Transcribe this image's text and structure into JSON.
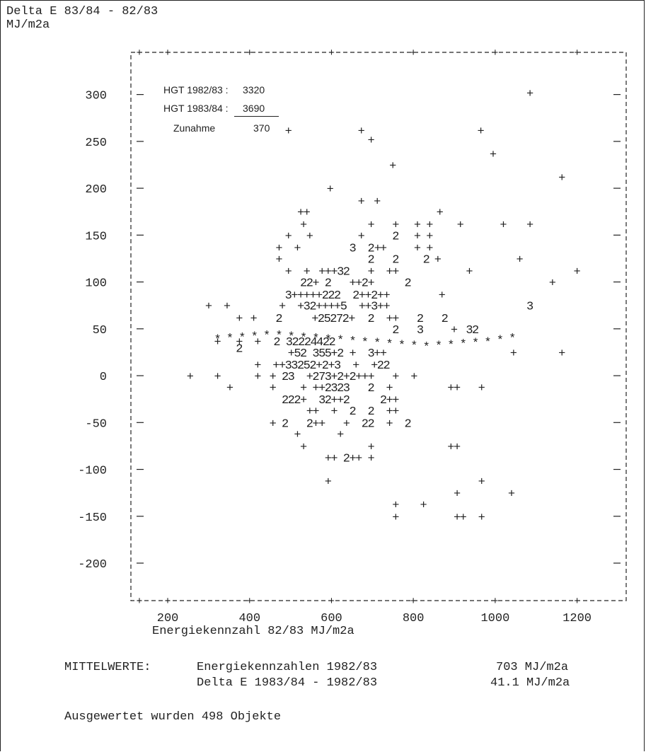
{
  "header": {
    "title": "Delta E 83/84 - 82/83",
    "unit": "MJ/m2a"
  },
  "chart_data": {
    "type": "scatter",
    "title": "Delta E 83/84 - 82/83",
    "ylabel": "MJ/m2a",
    "xlabel": "Energiekennzahl 82/83  MJ/m2a",
    "xlim": [
      110,
      1320
    ],
    "ylim": [
      -240,
      345
    ],
    "x_ticks": [
      200,
      400,
      600,
      800,
      1000,
      1200
    ],
    "y_ticks": [
      300,
      250,
      200,
      150,
      100,
      50,
      0,
      -50,
      -100,
      -150,
      -200
    ],
    "x_tick_labels": [
      "200",
      "400",
      "600",
      "800",
      "1000",
      "1200"
    ],
    "y_tick_labels": [
      "300",
      "250",
      "200",
      "150",
      "100",
      "50",
      "0",
      "-50",
      "-100",
      "-150",
      "-200"
    ],
    "grid": false,
    "markers": "count glyphs: '+' = 1 object, digits = number of objects at the same point, '*' = regression line",
    "points": [
      {
        "x": 1085,
        "y": 302,
        "m": "+"
      },
      {
        "x": 495,
        "y": 262,
        "m": "+"
      },
      {
        "x": 673,
        "y": 262,
        "m": "+"
      },
      {
        "x": 697,
        "y": 252,
        "m": "+"
      },
      {
        "x": 965,
        "y": 262,
        "m": "+"
      },
      {
        "x": 995,
        "y": 237,
        "m": "+"
      },
      {
        "x": 750,
        "y": 225,
        "m": "+"
      },
      {
        "x": 1163,
        "y": 212,
        "m": "+"
      },
      {
        "x": 597,
        "y": 200,
        "m": "+"
      },
      {
        "x": 673,
        "y": 187,
        "m": "+"
      },
      {
        "x": 712,
        "y": 187,
        "m": "+"
      },
      {
        "x": 525,
        "y": 175,
        "m": "+"
      },
      {
        "x": 540,
        "y": 175,
        "m": "+"
      },
      {
        "x": 865,
        "y": 175,
        "m": "+"
      },
      {
        "x": 532,
        "y": 162,
        "m": "+"
      },
      {
        "x": 697,
        "y": 162,
        "m": "+"
      },
      {
        "x": 757,
        "y": 162,
        "m": "+"
      },
      {
        "x": 810,
        "y": 162,
        "m": "+"
      },
      {
        "x": 840,
        "y": 162,
        "m": "+"
      },
      {
        "x": 915,
        "y": 162,
        "m": "+"
      },
      {
        "x": 1020,
        "y": 162,
        "m": "+"
      },
      {
        "x": 1085,
        "y": 162,
        "m": "+"
      },
      {
        "x": 495,
        "y": 150,
        "m": "+"
      },
      {
        "x": 547,
        "y": 150,
        "m": "+"
      },
      {
        "x": 673,
        "y": 150,
        "m": "+"
      },
      {
        "x": 757,
        "y": 150,
        "m": "2"
      },
      {
        "x": 810,
        "y": 150,
        "m": "+"
      },
      {
        "x": 840,
        "y": 150,
        "m": "+"
      },
      {
        "x": 472,
        "y": 137,
        "m": "+"
      },
      {
        "x": 517,
        "y": 137,
        "m": "+"
      },
      {
        "x": 652,
        "y": 137,
        "m": "3"
      },
      {
        "x": 697,
        "y": 137,
        "m": "2"
      },
      {
        "x": 713,
        "y": 137,
        "m": "+"
      },
      {
        "x": 727,
        "y": 137,
        "m": "+"
      },
      {
        "x": 810,
        "y": 137,
        "m": "+"
      },
      {
        "x": 840,
        "y": 137,
        "m": "+"
      },
      {
        "x": 472,
        "y": 125,
        "m": "+"
      },
      {
        "x": 697,
        "y": 125,
        "m": "2"
      },
      {
        "x": 757,
        "y": 125,
        "m": "2"
      },
      {
        "x": 832,
        "y": 125,
        "m": "2"
      },
      {
        "x": 860,
        "y": 125,
        "m": "+"
      },
      {
        "x": 1060,
        "y": 125,
        "m": "+"
      },
      {
        "x": 495,
        "y": 112,
        "m": "+"
      },
      {
        "x": 540,
        "y": 112,
        "m": "+"
      },
      {
        "x": 577,
        "y": 112,
        "m": "+"
      },
      {
        "x": 592,
        "y": 112,
        "m": "+"
      },
      {
        "x": 607,
        "y": 112,
        "m": "+"
      },
      {
        "x": 622,
        "y": 112,
        "m": "3"
      },
      {
        "x": 637,
        "y": 112,
        "m": "2"
      },
      {
        "x": 697,
        "y": 112,
        "m": "+"
      },
      {
        "x": 742,
        "y": 112,
        "m": "+"
      },
      {
        "x": 757,
        "y": 112,
        "m": "+"
      },
      {
        "x": 937,
        "y": 112,
        "m": "+"
      },
      {
        "x": 1200,
        "y": 112,
        "m": "+"
      },
      {
        "x": 532,
        "y": 100,
        "m": "2"
      },
      {
        "x": 547,
        "y": 100,
        "m": "2"
      },
      {
        "x": 562,
        "y": 100,
        "m": "+"
      },
      {
        "x": 592,
        "y": 100,
        "m": "2"
      },
      {
        "x": 652,
        "y": 100,
        "m": "+"
      },
      {
        "x": 667,
        "y": 100,
        "m": "+"
      },
      {
        "x": 682,
        "y": 100,
        "m": "2"
      },
      {
        "x": 697,
        "y": 100,
        "m": "+"
      },
      {
        "x": 787,
        "y": 100,
        "m": "2"
      },
      {
        "x": 1140,
        "y": 100,
        "m": "+"
      },
      {
        "x": 495,
        "y": 87,
        "m": "3"
      },
      {
        "x": 510,
        "y": 87,
        "m": "+"
      },
      {
        "x": 525,
        "y": 87,
        "m": "+"
      },
      {
        "x": 540,
        "y": 87,
        "m": "+"
      },
      {
        "x": 555,
        "y": 87,
        "m": "+"
      },
      {
        "x": 570,
        "y": 87,
        "m": "+"
      },
      {
        "x": 585,
        "y": 87,
        "m": "2"
      },
      {
        "x": 600,
        "y": 87,
        "m": "2"
      },
      {
        "x": 615,
        "y": 87,
        "m": "2"
      },
      {
        "x": 660,
        "y": 87,
        "m": "2"
      },
      {
        "x": 675,
        "y": 87,
        "m": "+"
      },
      {
        "x": 690,
        "y": 87,
        "m": "+"
      },
      {
        "x": 705,
        "y": 87,
        "m": "2"
      },
      {
        "x": 720,
        "y": 87,
        "m": "+"
      },
      {
        "x": 735,
        "y": 87,
        "m": "+"
      },
      {
        "x": 870,
        "y": 87,
        "m": "+"
      },
      {
        "x": 300,
        "y": 75,
        "m": "+"
      },
      {
        "x": 345,
        "y": 75,
        "m": "+"
      },
      {
        "x": 480,
        "y": 75,
        "m": "+"
      },
      {
        "x": 525,
        "y": 75,
        "m": "+"
      },
      {
        "x": 540,
        "y": 75,
        "m": "3"
      },
      {
        "x": 555,
        "y": 75,
        "m": "2"
      },
      {
        "x": 570,
        "y": 75,
        "m": "+"
      },
      {
        "x": 585,
        "y": 75,
        "m": "+"
      },
      {
        "x": 600,
        "y": 75,
        "m": "+"
      },
      {
        "x": 615,
        "y": 75,
        "m": "+"
      },
      {
        "x": 630,
        "y": 75,
        "m": "5"
      },
      {
        "x": 675,
        "y": 75,
        "m": "+"
      },
      {
        "x": 690,
        "y": 75,
        "m": "+"
      },
      {
        "x": 705,
        "y": 75,
        "m": "3"
      },
      {
        "x": 720,
        "y": 75,
        "m": "+"
      },
      {
        "x": 735,
        "y": 75,
        "m": "+"
      },
      {
        "x": 1085,
        "y": 75,
        "m": "3"
      },
      {
        "x": 375,
        "y": 62,
        "m": "+"
      },
      {
        "x": 410,
        "y": 62,
        "m": "+"
      },
      {
        "x": 472,
        "y": 62,
        "m": "2"
      },
      {
        "x": 560,
        "y": 62,
        "m": "+"
      },
      {
        "x": 575,
        "y": 62,
        "m": "2"
      },
      {
        "x": 590,
        "y": 62,
        "m": "5"
      },
      {
        "x": 605,
        "y": 62,
        "m": "2"
      },
      {
        "x": 620,
        "y": 62,
        "m": "7"
      },
      {
        "x": 635,
        "y": 62,
        "m": "2"
      },
      {
        "x": 650,
        "y": 62,
        "m": "+"
      },
      {
        "x": 697,
        "y": 62,
        "m": "2"
      },
      {
        "x": 742,
        "y": 62,
        "m": "+"
      },
      {
        "x": 757,
        "y": 62,
        "m": "+"
      },
      {
        "x": 817,
        "y": 62,
        "m": "2"
      },
      {
        "x": 877,
        "y": 62,
        "m": "2"
      },
      {
        "x": 757,
        "y": 50,
        "m": "2"
      },
      {
        "x": 817,
        "y": 50,
        "m": "3"
      },
      {
        "x": 900,
        "y": 50,
        "m": "+"
      },
      {
        "x": 937,
        "y": 50,
        "m": "3"
      },
      {
        "x": 952,
        "y": 50,
        "m": "2"
      },
      {
        "x": 322,
        "y": 37,
        "m": "+"
      },
      {
        "x": 375,
        "y": 37,
        "m": "+"
      },
      {
        "x": 420,
        "y": 37,
        "m": "+"
      },
      {
        "x": 467,
        "y": 37,
        "m": "2"
      },
      {
        "x": 497,
        "y": 37,
        "m": "3"
      },
      {
        "x": 512,
        "y": 37,
        "m": "2"
      },
      {
        "x": 527,
        "y": 37,
        "m": "2"
      },
      {
        "x": 542,
        "y": 37,
        "m": "2"
      },
      {
        "x": 557,
        "y": 37,
        "m": "4"
      },
      {
        "x": 572,
        "y": 37,
        "m": "4"
      },
      {
        "x": 587,
        "y": 37,
        "m": "2"
      },
      {
        "x": 602,
        "y": 37,
        "m": "2"
      },
      {
        "x": 375,
        "y": 30,
        "m": "2"
      },
      {
        "x": 502,
        "y": 25,
        "m": "+"
      },
      {
        "x": 517,
        "y": 25,
        "m": "5"
      },
      {
        "x": 532,
        "y": 25,
        "m": "2"
      },
      {
        "x": 562,
        "y": 25,
        "m": "3"
      },
      {
        "x": 577,
        "y": 25,
        "m": "5"
      },
      {
        "x": 592,
        "y": 25,
        "m": "5"
      },
      {
        "x": 607,
        "y": 25,
        "m": "+"
      },
      {
        "x": 622,
        "y": 25,
        "m": "2"
      },
      {
        "x": 652,
        "y": 25,
        "m": "+"
      },
      {
        "x": 697,
        "y": 25,
        "m": "3"
      },
      {
        "x": 712,
        "y": 25,
        "m": "+"
      },
      {
        "x": 727,
        "y": 25,
        "m": "+"
      },
      {
        "x": 1045,
        "y": 25,
        "m": "+"
      },
      {
        "x": 1163,
        "y": 25,
        "m": "+"
      },
      {
        "x": 420,
        "y": 12,
        "m": "+"
      },
      {
        "x": 465,
        "y": 12,
        "m": "+"
      },
      {
        "x": 480,
        "y": 12,
        "m": "+"
      },
      {
        "x": 495,
        "y": 12,
        "m": "3"
      },
      {
        "x": 510,
        "y": 12,
        "m": "3"
      },
      {
        "x": 525,
        "y": 12,
        "m": "2"
      },
      {
        "x": 540,
        "y": 12,
        "m": "5"
      },
      {
        "x": 555,
        "y": 12,
        "m": "2"
      },
      {
        "x": 570,
        "y": 12,
        "m": "+"
      },
      {
        "x": 585,
        "y": 12,
        "m": "2"
      },
      {
        "x": 600,
        "y": 12,
        "m": "+"
      },
      {
        "x": 615,
        "y": 12,
        "m": "3"
      },
      {
        "x": 660,
        "y": 12,
        "m": "+"
      },
      {
        "x": 705,
        "y": 12,
        "m": "+"
      },
      {
        "x": 720,
        "y": 12,
        "m": "2"
      },
      {
        "x": 735,
        "y": 12,
        "m": "2"
      },
      {
        "x": 255,
        "y": 0,
        "m": "+"
      },
      {
        "x": 322,
        "y": 0,
        "m": "+"
      },
      {
        "x": 420,
        "y": 0,
        "m": "+"
      },
      {
        "x": 457,
        "y": 0,
        "m": "+"
      },
      {
        "x": 487,
        "y": 0,
        "m": "2"
      },
      {
        "x": 502,
        "y": 0,
        "m": "3"
      },
      {
        "x": 547,
        "y": 0,
        "m": "+"
      },
      {
        "x": 562,
        "y": 0,
        "m": "2"
      },
      {
        "x": 577,
        "y": 0,
        "m": "7"
      },
      {
        "x": 592,
        "y": 0,
        "m": "3"
      },
      {
        "x": 607,
        "y": 0,
        "m": "+"
      },
      {
        "x": 622,
        "y": 0,
        "m": "2"
      },
      {
        "x": 637,
        "y": 0,
        "m": "+"
      },
      {
        "x": 652,
        "y": 0,
        "m": "2"
      },
      {
        "x": 667,
        "y": 0,
        "m": "+"
      },
      {
        "x": 682,
        "y": 0,
        "m": "+"
      },
      {
        "x": 697,
        "y": 0,
        "m": "+"
      },
      {
        "x": 757,
        "y": 0,
        "m": "+"
      },
      {
        "x": 802,
        "y": 0,
        "m": "+"
      },
      {
        "x": 352,
        "y": -12,
        "m": "+"
      },
      {
        "x": 457,
        "y": -12,
        "m": "+"
      },
      {
        "x": 532,
        "y": -12,
        "m": "+"
      },
      {
        "x": 562,
        "y": -12,
        "m": "+"
      },
      {
        "x": 577,
        "y": -12,
        "m": "+"
      },
      {
        "x": 592,
        "y": -12,
        "m": "2"
      },
      {
        "x": 607,
        "y": -12,
        "m": "3"
      },
      {
        "x": 622,
        "y": -12,
        "m": "2"
      },
      {
        "x": 637,
        "y": -12,
        "m": "3"
      },
      {
        "x": 697,
        "y": -12,
        "m": "2"
      },
      {
        "x": 742,
        "y": -12,
        "m": "+"
      },
      {
        "x": 892,
        "y": -12,
        "m": "+"
      },
      {
        "x": 907,
        "y": -12,
        "m": "+"
      },
      {
        "x": 967,
        "y": -12,
        "m": "+"
      },
      {
        "x": 487,
        "y": -25,
        "m": "2"
      },
      {
        "x": 502,
        "y": -25,
        "m": "2"
      },
      {
        "x": 517,
        "y": -25,
        "m": "2"
      },
      {
        "x": 532,
        "y": -25,
        "m": "+"
      },
      {
        "x": 577,
        "y": -25,
        "m": "3"
      },
      {
        "x": 592,
        "y": -25,
        "m": "2"
      },
      {
        "x": 607,
        "y": -25,
        "m": "+"
      },
      {
        "x": 622,
        "y": -25,
        "m": "+"
      },
      {
        "x": 637,
        "y": -25,
        "m": "2"
      },
      {
        "x": 727,
        "y": -25,
        "m": "2"
      },
      {
        "x": 742,
        "y": -25,
        "m": "+"
      },
      {
        "x": 757,
        "y": -25,
        "m": "+"
      },
      {
        "x": 547,
        "y": -37,
        "m": "+"
      },
      {
        "x": 562,
        "y": -37,
        "m": "+"
      },
      {
        "x": 607,
        "y": -37,
        "m": "+"
      },
      {
        "x": 652,
        "y": -37,
        "m": "2"
      },
      {
        "x": 697,
        "y": -37,
        "m": "2"
      },
      {
        "x": 742,
        "y": -37,
        "m": "+"
      },
      {
        "x": 757,
        "y": -37,
        "m": "+"
      },
      {
        "x": 457,
        "y": -50,
        "m": "+"
      },
      {
        "x": 487,
        "y": -50,
        "m": "2"
      },
      {
        "x": 547,
        "y": -50,
        "m": "2"
      },
      {
        "x": 562,
        "y": -50,
        "m": "+"
      },
      {
        "x": 577,
        "y": -50,
        "m": "+"
      },
      {
        "x": 637,
        "y": -50,
        "m": "+"
      },
      {
        "x": 682,
        "y": -50,
        "m": "2"
      },
      {
        "x": 697,
        "y": -50,
        "m": "2"
      },
      {
        "x": 742,
        "y": -50,
        "m": "+"
      },
      {
        "x": 787,
        "y": -50,
        "m": "2"
      },
      {
        "x": 517,
        "y": -62,
        "m": "+"
      },
      {
        "x": 622,
        "y": -62,
        "m": "+"
      },
      {
        "x": 532,
        "y": -75,
        "m": "+"
      },
      {
        "x": 697,
        "y": -75,
        "m": "+"
      },
      {
        "x": 892,
        "y": -75,
        "m": "+"
      },
      {
        "x": 907,
        "y": -75,
        "m": "+"
      },
      {
        "x": 592,
        "y": -87,
        "m": "+"
      },
      {
        "x": 607,
        "y": -87,
        "m": "+"
      },
      {
        "x": 637,
        "y": -87,
        "m": "2"
      },
      {
        "x": 652,
        "y": -87,
        "m": "+"
      },
      {
        "x": 667,
        "y": -87,
        "m": "+"
      },
      {
        "x": 697,
        "y": -87,
        "m": "+"
      },
      {
        "x": 592,
        "y": -112,
        "m": "+"
      },
      {
        "x": 967,
        "y": -112,
        "m": "+"
      },
      {
        "x": 907,
        "y": -125,
        "m": "+"
      },
      {
        "x": 1040,
        "y": -125,
        "m": "+"
      },
      {
        "x": 757,
        "y": -137,
        "m": "+"
      },
      {
        "x": 825,
        "y": -137,
        "m": "+"
      },
      {
        "x": 757,
        "y": -150,
        "m": "+"
      },
      {
        "x": 907,
        "y": -150,
        "m": "+"
      },
      {
        "x": 922,
        "y": -150,
        "m": "+"
      },
      {
        "x": 967,
        "y": -150,
        "m": "+"
      }
    ],
    "regression_line": {
      "marker": "*",
      "points": [
        {
          "x": 322,
          "y": 42
        },
        {
          "x": 352,
          "y": 43
        },
        {
          "x": 382,
          "y": 44
        },
        {
          "x": 412,
          "y": 45
        },
        {
          "x": 442,
          "y": 46
        },
        {
          "x": 472,
          "y": 46
        },
        {
          "x": 502,
          "y": 45
        },
        {
          "x": 532,
          "y": 44
        },
        {
          "x": 562,
          "y": 43
        },
        {
          "x": 592,
          "y": 42
        },
        {
          "x": 622,
          "y": 41
        },
        {
          "x": 652,
          "y": 40
        },
        {
          "x": 682,
          "y": 39
        },
        {
          "x": 712,
          "y": 38
        },
        {
          "x": 742,
          "y": 37
        },
        {
          "x": 772,
          "y": 36
        },
        {
          "x": 802,
          "y": 35
        },
        {
          "x": 832,
          "y": 34
        },
        {
          "x": 862,
          "y": 35
        },
        {
          "x": 892,
          "y": 36
        },
        {
          "x": 922,
          "y": 37
        },
        {
          "x": 952,
          "y": 38
        },
        {
          "x": 982,
          "y": 39
        },
        {
          "x": 1012,
          "y": 41
        },
        {
          "x": 1042,
          "y": 43
        }
      ]
    }
  },
  "annotation": {
    "hgt_8283_label": "HGT 1982/83 :",
    "hgt_8283_value": "3320",
    "hgt_8384_label": "HGT 1983/84 :",
    "hgt_8384_value": "3690",
    "zunahme_label": "Zunahme",
    "zunahme_value": "370"
  },
  "summary": {
    "heading": "MITTELWERTE:",
    "row1_label": "Energiekennzahlen 1982/83",
    "row1_value": "703 MJ/m2a",
    "row2_label": "Delta E 1983/84 - 1982/83",
    "row2_value": "41.1 MJ/m2a",
    "footer": "Ausgewertet wurden 498 Objekte"
  }
}
